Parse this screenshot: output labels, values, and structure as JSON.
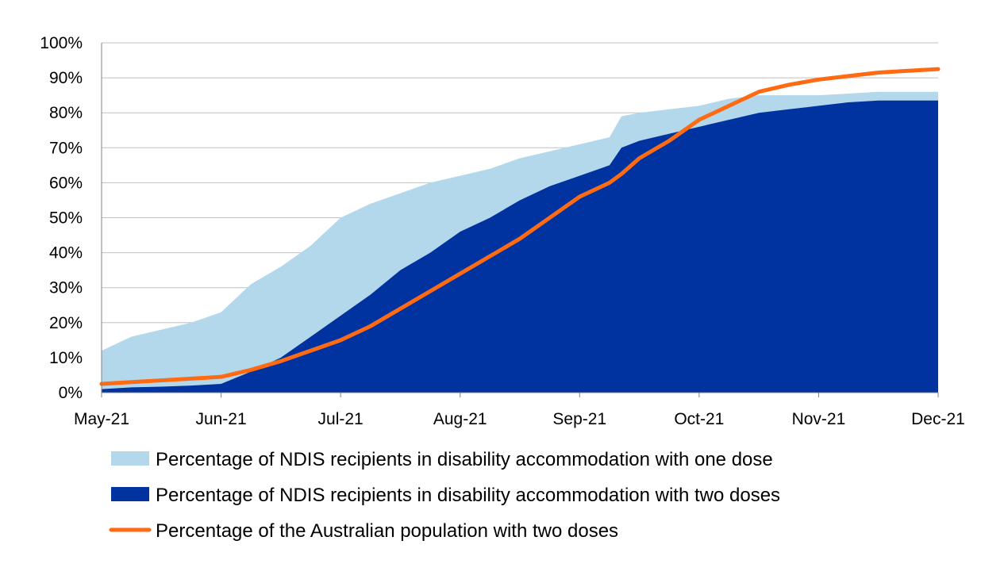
{
  "chart_data": {
    "type": "area",
    "title": "",
    "xlabel": "",
    "ylabel": "",
    "ylim": [
      0,
      100
    ],
    "yticks": [
      "0%",
      "10%",
      "20%",
      "30%",
      "40%",
      "50%",
      "60%",
      "70%",
      "80%",
      "90%",
      "100%"
    ],
    "xticks": [
      "May-21",
      "Jun-21",
      "Jul-21",
      "Aug-21",
      "Sep-21",
      "Oct-21",
      "Nov-21",
      "Dec-21"
    ],
    "grid": true,
    "legend_position": "bottom",
    "x_months": [
      0,
      0.25,
      0.5,
      0.75,
      1,
      1.25,
      1.5,
      1.75,
      2,
      2.25,
      2.5,
      2.75,
      3,
      3.25,
      3.5,
      3.75,
      4,
      4.25,
      4.35,
      4.5,
      4.75,
      5,
      5.25,
      5.5,
      5.75,
      6,
      6.25,
      6.5,
      6.75,
      7
    ],
    "series": [
      {
        "name": "Percentage of NDIS recipients in disability accommodation with one dose",
        "type": "area",
        "color": "#b4d8eb",
        "values": [
          12,
          16,
          18,
          20,
          23,
          31,
          36,
          42,
          50,
          54,
          57,
          60,
          62,
          64,
          67,
          69,
          71,
          73,
          79,
          80,
          81,
          82,
          84,
          85,
          85,
          85,
          85.5,
          86,
          86,
          86
        ]
      },
      {
        "name": "Percentage of NDIS recipients in disability accommodation with two doses",
        "type": "area",
        "color": "#0033a0",
        "values": [
          1,
          1.5,
          1.7,
          2,
          2.5,
          6,
          10,
          16,
          22,
          28,
          35,
          40,
          46,
          50,
          55,
          59,
          62,
          65,
          70,
          72,
          74,
          76,
          78,
          80,
          81,
          82,
          83,
          83.5,
          83.5,
          83.5
        ]
      },
      {
        "name": "Percentage of the Australian population with two doses",
        "type": "line",
        "color": "#ff6a13",
        "values": [
          2.5,
          3,
          3.5,
          4,
          4.5,
          6.5,
          9,
          12,
          15,
          19,
          24,
          29,
          34,
          39,
          44,
          50,
          56,
          60,
          62.5,
          67,
          72,
          78,
          82,
          86,
          88,
          89.5,
          90.5,
          91.5,
          92,
          92.5
        ]
      }
    ]
  }
}
